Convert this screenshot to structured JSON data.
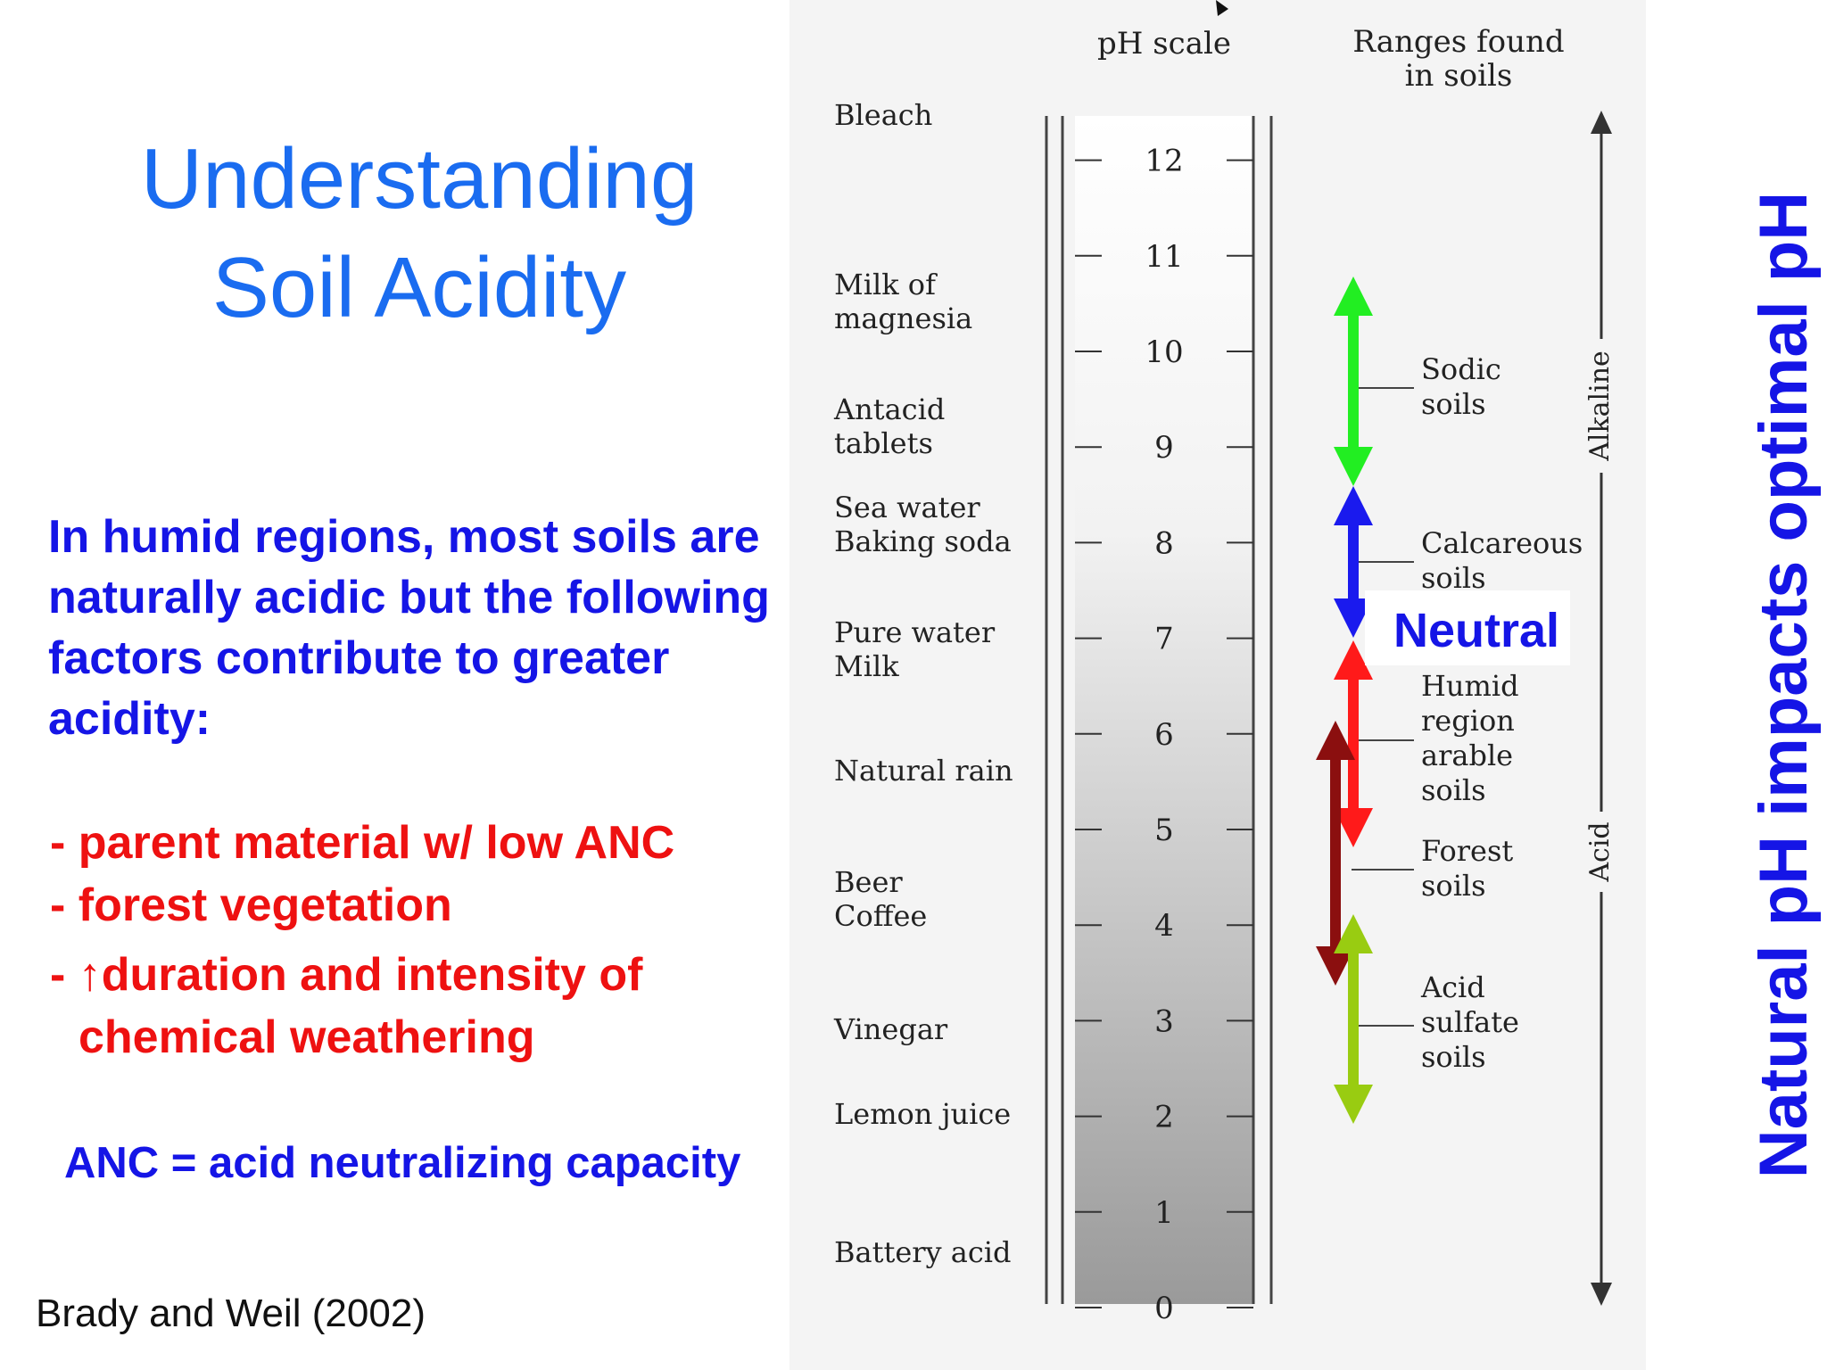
{
  "slide": {
    "title_line1": "Understanding",
    "title_line2": "Soil Acidity",
    "intro": "In humid regions, most soils are naturally acidic but the following factors contribute to greater acidity:",
    "factor1": "- parent material w/ low ANC",
    "factor2": "- forest vegetation",
    "factor3_a": "-  ↑duration and intensity of",
    "factor3_b": "chemical weathering",
    "anc_definition": "ANC = acid neutralizing capacity",
    "citation": "Brady and Weil (2002)",
    "vertical_title": "Natural pH impacts optimal pH"
  },
  "figure": {
    "header_ph_scale": "pH scale",
    "header_ranges_1": "Ranges found",
    "header_ranges_2": "in soils",
    "scale_ticks": [
      "12",
      "11",
      "10",
      "9",
      "8",
      "7",
      "6",
      "5",
      "4",
      "3",
      "2",
      "1",
      "0"
    ],
    "substances": [
      {
        "line1": "Bleach",
        "line2": ""
      },
      {
        "line1": "Milk of",
        "line2": "magnesia"
      },
      {
        "line1": "Antacid",
        "line2": "tablets"
      },
      {
        "line1": "Sea water",
        "line2": "Baking soda"
      },
      {
        "line1": "Pure water",
        "line2": "Milk"
      },
      {
        "line1": "Natural rain",
        "line2": ""
      },
      {
        "line1": "Beer",
        "line2": "Coffee"
      },
      {
        "line1": "Vinegar",
        "line2": ""
      },
      {
        "line1": "Lemon juice",
        "line2": ""
      },
      {
        "line1": "Battery acid",
        "line2": ""
      }
    ],
    "soil_ranges": [
      {
        "line1": "Sodic",
        "line2": "soils",
        "line3": "",
        "line4": "",
        "arrow_color": "#22ee22"
      },
      {
        "line1": "Calcareous",
        "line2": "soils",
        "line3": "",
        "line4": "",
        "arrow_color": "#1a1aee"
      },
      {
        "line1": "Humid",
        "line2": "region",
        "line3": "arable",
        "line4": "soils",
        "arrow_color": "#ff1a1a"
      },
      {
        "line1": "Forest",
        "line2": "soils",
        "line3": "",
        "line4": "",
        "arrow_color": "#8b0f0f"
      },
      {
        "line1": "Acid",
        "line2": "sulfate",
        "line3": "soils",
        "line4": "",
        "arrow_color": "#99cc11"
      }
    ],
    "neutral_label": "Neutral",
    "axis_alkaline": "Alkaline",
    "axis_acid": "Acid"
  }
}
